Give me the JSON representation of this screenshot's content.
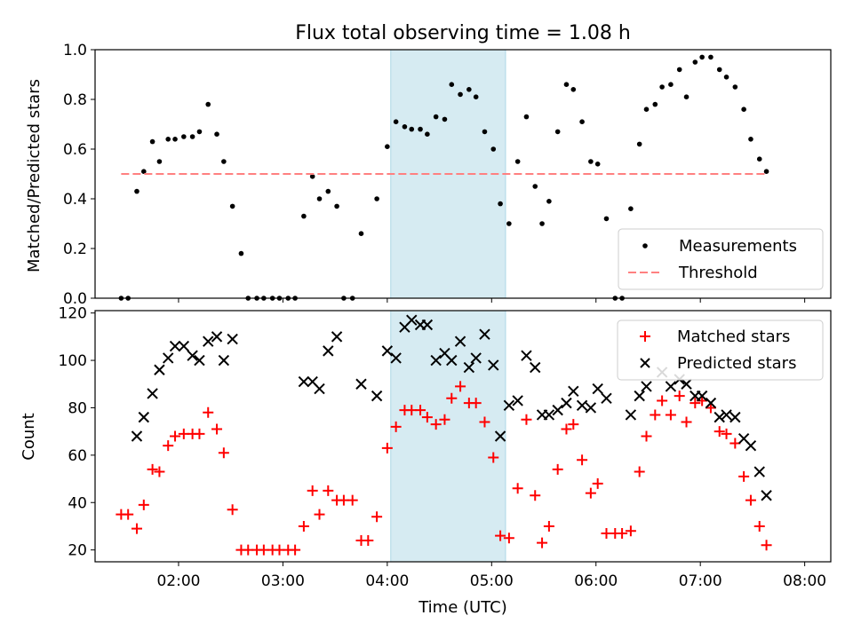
{
  "chart_data": [
    {
      "type": "scatter",
      "title": "Flux total observing time = 1.08 h",
      "ylabel": "Matched/Predicted stars",
      "xlabel": "",
      "xlim": [
        "01:12",
        "08:15"
      ],
      "ylim": [
        0.0,
        1.0
      ],
      "x_tick_labels": [
        "02:00",
        "03:00",
        "04:00",
        "05:00",
        "06:00",
        "07:00",
        "08:00"
      ],
      "y_tick_labels": [
        "0.0",
        "0.2",
        "0.4",
        "0.6",
        "0.8",
        "1.0"
      ],
      "y_ticks": [
        0.0,
        0.2,
        0.4,
        0.6,
        0.8,
        1.0
      ],
      "highlight_span": {
        "x": [
          "04:02",
          "05:08"
        ],
        "color": "#add8e6"
      },
      "legend_position": "lower right",
      "series": [
        {
          "name": "Measurements",
          "marker": "dot",
          "color": "#000000",
          "points": [
            [
              "01:27",
              0.0
            ],
            [
              "01:31",
              0.0
            ],
            [
              "01:36",
              0.43
            ],
            [
              "01:40",
              0.51
            ],
            [
              "01:45",
              0.63
            ],
            [
              "01:49",
              0.55
            ],
            [
              "01:54",
              0.64
            ],
            [
              "01:58",
              0.64
            ],
            [
              "02:03",
              0.65
            ],
            [
              "02:08",
              0.65
            ],
            [
              "02:12",
              0.67
            ],
            [
              "02:17",
              0.78
            ],
            [
              "02:22",
              0.66
            ],
            [
              "02:26",
              0.55
            ],
            [
              "02:31",
              0.37
            ],
            [
              "02:36",
              0.18
            ],
            [
              "02:40",
              0.0
            ],
            [
              "02:45",
              0.0
            ],
            [
              "02:49",
              0.0
            ],
            [
              "02:54",
              0.0
            ],
            [
              "02:58",
              0.0
            ],
            [
              "03:03",
              0.0
            ],
            [
              "03:07",
              0.0
            ],
            [
              "03:12",
              0.33
            ],
            [
              "03:17",
              0.49
            ],
            [
              "03:21",
              0.4
            ],
            [
              "03:26",
              0.43
            ],
            [
              "03:31",
              0.37
            ],
            [
              "03:35",
              0.0
            ],
            [
              "03:40",
              0.0
            ],
            [
              "03:45",
              0.26
            ],
            [
              "03:54",
              0.4
            ],
            [
              "04:00",
              0.61
            ],
            [
              "04:05",
              0.71
            ],
            [
              "04:10",
              0.69
            ],
            [
              "04:14",
              0.68
            ],
            [
              "04:19",
              0.68
            ],
            [
              "04:23",
              0.66
            ],
            [
              "04:28",
              0.73
            ],
            [
              "04:33",
              0.72
            ],
            [
              "04:37",
              0.86
            ],
            [
              "04:42",
              0.82
            ],
            [
              "04:47",
              0.84
            ],
            [
              "04:51",
              0.81
            ],
            [
              "04:56",
              0.67
            ],
            [
              "05:01",
              0.6
            ],
            [
              "05:05",
              0.38
            ],
            [
              "05:10",
              0.3
            ],
            [
              "05:15",
              0.55
            ],
            [
              "05:20",
              0.73
            ],
            [
              "05:25",
              0.45
            ],
            [
              "05:29",
              0.3
            ],
            [
              "05:33",
              0.39
            ],
            [
              "05:38",
              0.67
            ],
            [
              "05:43",
              0.86
            ],
            [
              "05:47",
              0.84
            ],
            [
              "05:52",
              0.71
            ],
            [
              "05:57",
              0.55
            ],
            [
              "06:01",
              0.54
            ],
            [
              "06:06",
              0.32
            ],
            [
              "06:11",
              0.0
            ],
            [
              "06:15",
              0.0
            ],
            [
              "06:20",
              0.36
            ],
            [
              "06:25",
              0.62
            ],
            [
              "06:29",
              0.76
            ],
            [
              "06:34",
              0.78
            ],
            [
              "06:38",
              0.85
            ],
            [
              "06:43",
              0.86
            ],
            [
              "06:48",
              0.92
            ],
            [
              "06:52",
              0.81
            ],
            [
              "06:57",
              0.95
            ],
            [
              "07:01",
              0.97
            ],
            [
              "07:06",
              0.97
            ],
            [
              "07:11",
              0.92
            ],
            [
              "07:15",
              0.89
            ],
            [
              "07:20",
              0.85
            ],
            [
              "07:25",
              0.76
            ],
            [
              "07:29",
              0.64
            ],
            [
              "07:34",
              0.56
            ],
            [
              "07:38",
              0.51
            ]
          ]
        },
        {
          "name": "Threshold",
          "marker": "dashed-line",
          "color": "#ff8080",
          "points": [
            [
              "01:27",
              0.5
            ],
            [
              "07:38",
              0.5
            ]
          ]
        }
      ]
    },
    {
      "type": "scatter",
      "title": "",
      "xlabel": "Time (UTC)",
      "ylabel": "Count",
      "xlim": [
        "01:12",
        "08:15"
      ],
      "ylim": [
        15,
        121
      ],
      "x_tick_labels": [
        "02:00",
        "03:00",
        "04:00",
        "05:00",
        "06:00",
        "07:00",
        "08:00"
      ],
      "y_tick_labels": [
        "20",
        "40",
        "60",
        "80",
        "100",
        "120"
      ],
      "y_ticks": [
        20,
        40,
        60,
        80,
        100,
        120
      ],
      "highlight_span": {
        "x": [
          "04:02",
          "05:08"
        ],
        "color": "#add8e6"
      },
      "legend_position": "upper right",
      "series": [
        {
          "name": "Matched stars",
          "marker": "plus",
          "color": "#ff0000",
          "points": [
            [
              "01:27",
              35
            ],
            [
              "01:31",
              35
            ],
            [
              "01:36",
              29
            ],
            [
              "01:40",
              39
            ],
            [
              "01:45",
              54
            ],
            [
              "01:49",
              53
            ],
            [
              "01:54",
              64
            ],
            [
              "01:58",
              68
            ],
            [
              "02:03",
              69
            ],
            [
              "02:08",
              69
            ],
            [
              "02:12",
              69
            ],
            [
              "02:17",
              78
            ],
            [
              "02:22",
              71
            ],
            [
              "02:26",
              61
            ],
            [
              "02:31",
              37
            ],
            [
              "02:36",
              20
            ],
            [
              "02:40",
              20
            ],
            [
              "02:45",
              20
            ],
            [
              "02:49",
              20
            ],
            [
              "02:54",
              20
            ],
            [
              "02:58",
              20
            ],
            [
              "03:03",
              20
            ],
            [
              "03:07",
              20
            ],
            [
              "03:12",
              30
            ],
            [
              "03:17",
              45
            ],
            [
              "03:21",
              35
            ],
            [
              "03:26",
              45
            ],
            [
              "03:31",
              41
            ],
            [
              "03:35",
              41
            ],
            [
              "03:40",
              41
            ],
            [
              "03:45",
              24
            ],
            [
              "03:49",
              24
            ],
            [
              "03:54",
              34
            ],
            [
              "04:00",
              63
            ],
            [
              "04:05",
              72
            ],
            [
              "04:10",
              79
            ],
            [
              "04:14",
              79
            ],
            [
              "04:19",
              79
            ],
            [
              "04:23",
              76
            ],
            [
              "04:28",
              73
            ],
            [
              "04:33",
              75
            ],
            [
              "04:37",
              84
            ],
            [
              "04:42",
              89
            ],
            [
              "04:47",
              82
            ],
            [
              "04:51",
              82
            ],
            [
              "04:56",
              74
            ],
            [
              "05:01",
              59
            ],
            [
              "05:05",
              26
            ],
            [
              "05:10",
              25
            ],
            [
              "05:15",
              46
            ],
            [
              "05:20",
              75
            ],
            [
              "05:25",
              43
            ],
            [
              "05:29",
              23
            ],
            [
              "05:33",
              30
            ],
            [
              "05:38",
              54
            ],
            [
              "05:43",
              71
            ],
            [
              "05:47",
              73
            ],
            [
              "05:52",
              58
            ],
            [
              "05:57",
              44
            ],
            [
              "06:01",
              48
            ],
            [
              "06:06",
              27
            ],
            [
              "06:11",
              27
            ],
            [
              "06:15",
              27
            ],
            [
              "06:20",
              28
            ],
            [
              "06:25",
              53
            ],
            [
              "06:29",
              68
            ],
            [
              "06:34",
              77
            ],
            [
              "06:38",
              83
            ],
            [
              "06:43",
              77
            ],
            [
              "06:48",
              85
            ],
            [
              "06:52",
              74
            ],
            [
              "06:57",
              82
            ],
            [
              "07:01",
              83
            ],
            [
              "07:06",
              80
            ],
            [
              "07:11",
              70
            ],
            [
              "07:15",
              69
            ],
            [
              "07:20",
              65
            ],
            [
              "07:25",
              51
            ],
            [
              "07:29",
              41
            ],
            [
              "07:34",
              30
            ],
            [
              "07:38",
              22
            ]
          ]
        },
        {
          "name": "Predicted stars",
          "marker": "x",
          "color": "#000000",
          "points": [
            [
              "01:36",
              68
            ],
            [
              "01:40",
              76
            ],
            [
              "01:45",
              86
            ],
            [
              "01:49",
              96
            ],
            [
              "01:54",
              101
            ],
            [
              "01:58",
              106
            ],
            [
              "02:03",
              106
            ],
            [
              "02:08",
              102
            ],
            [
              "02:12",
              100
            ],
            [
              "02:17",
              108
            ],
            [
              "02:22",
              110
            ],
            [
              "02:26",
              100
            ],
            [
              "02:31",
              109
            ],
            [
              "03:12",
              91
            ],
            [
              "03:17",
              91
            ],
            [
              "03:21",
              88
            ],
            [
              "03:26",
              104
            ],
            [
              "03:31",
              110
            ],
            [
              "03:45",
              90
            ],
            [
              "03:54",
              85
            ],
            [
              "04:00",
              104
            ],
            [
              "04:05",
              101
            ],
            [
              "04:10",
              114
            ],
            [
              "04:14",
              117
            ],
            [
              "04:19",
              115
            ],
            [
              "04:23",
              115
            ],
            [
              "04:28",
              100
            ],
            [
              "04:33",
              103
            ],
            [
              "04:37",
              100
            ],
            [
              "04:42",
              108
            ],
            [
              "04:47",
              97
            ],
            [
              "04:51",
              101
            ],
            [
              "04:56",
              111
            ],
            [
              "05:01",
              98
            ],
            [
              "05:05",
              68
            ],
            [
              "05:10",
              81
            ],
            [
              "05:15",
              83
            ],
            [
              "05:20",
              102
            ],
            [
              "05:25",
              97
            ],
            [
              "05:29",
              77
            ],
            [
              "05:33",
              77
            ],
            [
              "05:38",
              79
            ],
            [
              "05:43",
              82
            ],
            [
              "05:47",
              87
            ],
            [
              "05:52",
              81
            ],
            [
              "05:57",
              80
            ],
            [
              "06:01",
              88
            ],
            [
              "06:06",
              84
            ],
            [
              "06:20",
              77
            ],
            [
              "06:25",
              85
            ],
            [
              "06:29",
              89
            ],
            [
              "06:38",
              95
            ],
            [
              "06:43",
              89
            ],
            [
              "06:48",
              92
            ],
            [
              "06:52",
              90
            ],
            [
              "06:57",
              85
            ],
            [
              "07:01",
              85
            ],
            [
              "07:06",
              82
            ],
            [
              "07:11",
              76
            ],
            [
              "07:15",
              77
            ],
            [
              "07:20",
              76
            ],
            [
              "07:25",
              67
            ],
            [
              "07:29",
              64
            ],
            [
              "07:34",
              53
            ],
            [
              "07:38",
              43
            ]
          ]
        }
      ]
    }
  ]
}
